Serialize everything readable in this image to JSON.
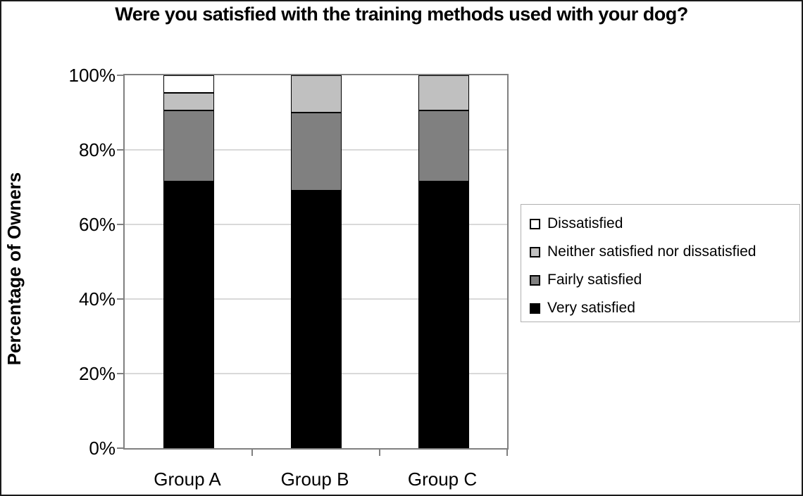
{
  "chart_data": {
    "type": "bar",
    "stacked": true,
    "title": "Were you satisfied with the training methods used with your dog?",
    "ylabel": "Percentage of Owners",
    "xlabel": "",
    "categories": [
      "Group A",
      "Group B",
      "Group C"
    ],
    "series": [
      {
        "name": "Very satisfied",
        "color": "#000000",
        "values": [
          71.5,
          69,
          71.5
        ]
      },
      {
        "name": "Fairly satisfied",
        "color": "#808080",
        "values": [
          19,
          21,
          19
        ]
      },
      {
        "name": "Neither satisfied nor dissatisfied",
        "color": "#c0c0c0",
        "values": [
          4.75,
          10,
          9.5
        ]
      },
      {
        "name": "Dissatisfied",
        "color": "#ffffff",
        "values": [
          4.75,
          0,
          0
        ]
      }
    ],
    "legend_items": [
      {
        "label": "Dissatisfied",
        "color": "#ffffff"
      },
      {
        "label": "Neither satisfied nor dissatisfied",
        "color": "#c0c0c0"
      },
      {
        "label": "Fairly satisfied",
        "color": "#808080"
      },
      {
        "label": "Very satisfied",
        "color": "#000000"
      }
    ],
    "ylim": [
      0,
      100
    ],
    "ytick_labels": [
      "0%",
      "20%",
      "40%",
      "60%",
      "80%",
      "100%"
    ],
    "ytick_values": [
      0,
      20,
      40,
      60,
      80,
      100
    ],
    "grid": true,
    "legend_position": "right",
    "colors": {
      "gridline": "#d9d9d9",
      "axis": "#808080",
      "bar_border": "#000000"
    }
  }
}
